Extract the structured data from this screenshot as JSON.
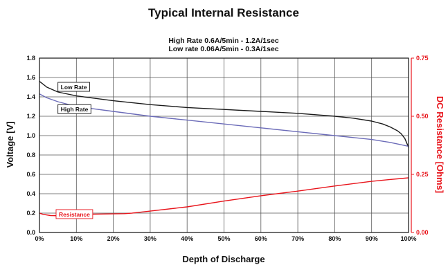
{
  "chart_data": {
    "type": "line",
    "title": "Typical Internal Resistance",
    "subtitle": [
      "High Rate 0.6A/5min - 1.2A/1sec",
      "Low rate 0.06A/5min - 0.3A/1sec"
    ],
    "xlabel": "Depth of Discharge",
    "ylabel": "Voltage [V]",
    "y2label": "DC Resistance [Ohms]",
    "xlim": [
      0,
      100
    ],
    "ylim": [
      0,
      1.8
    ],
    "y2lim": [
      0,
      0.75
    ],
    "x_ticks": [
      "0%",
      "10%",
      "20%",
      "30%",
      "40%",
      "50%",
      "60%",
      "70%",
      "80%",
      "90%",
      "100%"
    ],
    "y_ticks": [
      "0.0",
      "0.2",
      "0.4",
      "0.6",
      "0.8",
      "1.0",
      "1.2",
      "1.4",
      "1.6",
      "1.8"
    ],
    "y2_ticks": [
      "0.00",
      "0.25",
      "0.50",
      "0.75"
    ],
    "grid": true,
    "colors": {
      "low_rate": "#1a1a1a",
      "high_rate": "#6b6bb8",
      "resistance": "#e8141b",
      "grid": "#555555"
    },
    "annotations": {
      "low_rate": "Low Rate",
      "high_rate": "High Rate",
      "resistance": "Resistance"
    },
    "series": [
      {
        "name": "Low Rate",
        "axis": "left",
        "x": [
          0,
          2,
          5,
          10,
          20,
          30,
          40,
          50,
          60,
          70,
          80,
          85,
          90,
          93,
          95,
          97,
          98,
          99,
          100
        ],
        "y": [
          1.56,
          1.5,
          1.45,
          1.41,
          1.36,
          1.32,
          1.29,
          1.27,
          1.25,
          1.23,
          1.2,
          1.18,
          1.15,
          1.12,
          1.09,
          1.05,
          1.02,
          0.97,
          0.88
        ]
      },
      {
        "name": "High Rate",
        "axis": "left",
        "x": [
          0,
          2,
          5,
          10,
          20,
          30,
          40,
          50,
          60,
          70,
          80,
          90,
          95,
          100
        ],
        "y": [
          1.43,
          1.39,
          1.35,
          1.3,
          1.25,
          1.2,
          1.16,
          1.12,
          1.08,
          1.04,
          1.0,
          0.96,
          0.93,
          0.89
        ]
      },
      {
        "name": "Resistance",
        "axis": "right",
        "x": [
          0,
          1,
          3,
          5,
          10,
          15,
          20,
          23,
          25,
          30,
          40,
          50,
          60,
          70,
          80,
          90,
          95,
          98,
          100
        ],
        "y": [
          0.083,
          0.078,
          0.073,
          0.072,
          0.077,
          0.079,
          0.08,
          0.081,
          0.083,
          0.092,
          0.11,
          0.135,
          0.158,
          0.178,
          0.2,
          0.22,
          0.228,
          0.232,
          0.235
        ]
      }
    ]
  }
}
